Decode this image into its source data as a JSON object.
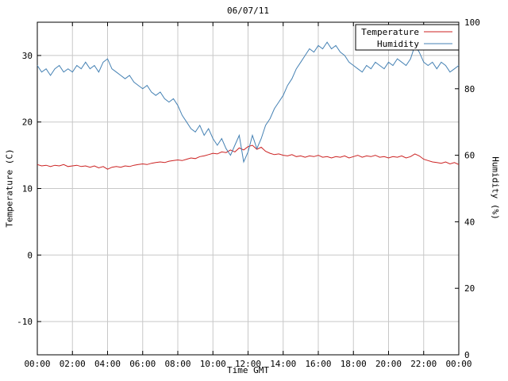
{
  "chart_data": {
    "type": "line",
    "title": "06/07/11",
    "xlabel": "Time GMT",
    "ylabel_left": "Temperature (C)",
    "ylabel_right": "Humidity (%)",
    "x_range_hours": [
      0,
      24
    ],
    "x_ticks": [
      "00:00",
      "02:00",
      "04:00",
      "06:00",
      "08:00",
      "10:00",
      "12:00",
      "14:00",
      "16:00",
      "18:00",
      "20:00",
      "22:00",
      "00:00"
    ],
    "y_left": {
      "range": [
        -15,
        35
      ],
      "ticks": [
        -10,
        0,
        10,
        20,
        30
      ]
    },
    "y_right": {
      "range": [
        0,
        100
      ],
      "ticks": [
        0,
        20,
        40,
        60,
        80,
        100
      ]
    },
    "grid": true,
    "legend_position": "top-right",
    "sample_interval_minutes": 15,
    "colors": {
      "grid": "#c8c8c8",
      "axis": "#000000",
      "background": "#ffffff"
    },
    "series": [
      {
        "name": "Temperature",
        "axis": "left",
        "color": "#cc2222",
        "values": [
          13.6,
          13.4,
          13.5,
          13.3,
          13.5,
          13.4,
          13.6,
          13.3,
          13.4,
          13.5,
          13.3,
          13.4,
          13.2,
          13.4,
          13.1,
          13.3,
          12.9,
          13.2,
          13.3,
          13.2,
          13.4,
          13.3,
          13.5,
          13.6,
          13.7,
          13.6,
          13.8,
          13.9,
          14.0,
          13.9,
          14.1,
          14.2,
          14.3,
          14.2,
          14.4,
          14.6,
          14.5,
          14.8,
          14.9,
          15.1,
          15.3,
          15.2,
          15.5,
          15.4,
          15.8,
          15.5,
          16.1,
          15.8,
          16.3,
          16.5,
          15.9,
          16.2,
          15.6,
          15.3,
          15.1,
          15.2,
          15.0,
          14.9,
          15.1,
          14.8,
          14.9,
          14.7,
          14.9,
          14.8,
          15.0,
          14.7,
          14.8,
          14.6,
          14.8,
          14.7,
          14.9,
          14.6,
          14.8,
          15.0,
          14.7,
          14.9,
          14.8,
          15.0,
          14.7,
          14.8,
          14.6,
          14.8,
          14.7,
          14.9,
          14.6,
          14.8,
          15.2,
          14.9,
          14.4,
          14.2,
          14.0,
          13.9,
          13.8,
          14.0,
          13.7,
          13.9,
          13.6
        ]
      },
      {
        "name": "Humidity",
        "axis": "right",
        "color": "#4682b4",
        "values": [
          87,
          85,
          86,
          84,
          86,
          87,
          85,
          86,
          85,
          87,
          86,
          88,
          86,
          87,
          85,
          88,
          89,
          86,
          85,
          84,
          83,
          84,
          82,
          81,
          80,
          81,
          79,
          78,
          79,
          77,
          76,
          77,
          75,
          72,
          70,
          68,
          67,
          69,
          66,
          68,
          65,
          63,
          65,
          62,
          60,
          63,
          66,
          58,
          61,
          66,
          62,
          65,
          69,
          71,
          74,
          76,
          78,
          81,
          83,
          86,
          88,
          90,
          92,
          91,
          93,
          92,
          94,
          92,
          93,
          91,
          90,
          88,
          87,
          86,
          85,
          87,
          86,
          88,
          87,
          86,
          88,
          87,
          89,
          88,
          87,
          89,
          93,
          91,
          88,
          87,
          88,
          86,
          88,
          87,
          85,
          86,
          87
        ]
      }
    ]
  }
}
